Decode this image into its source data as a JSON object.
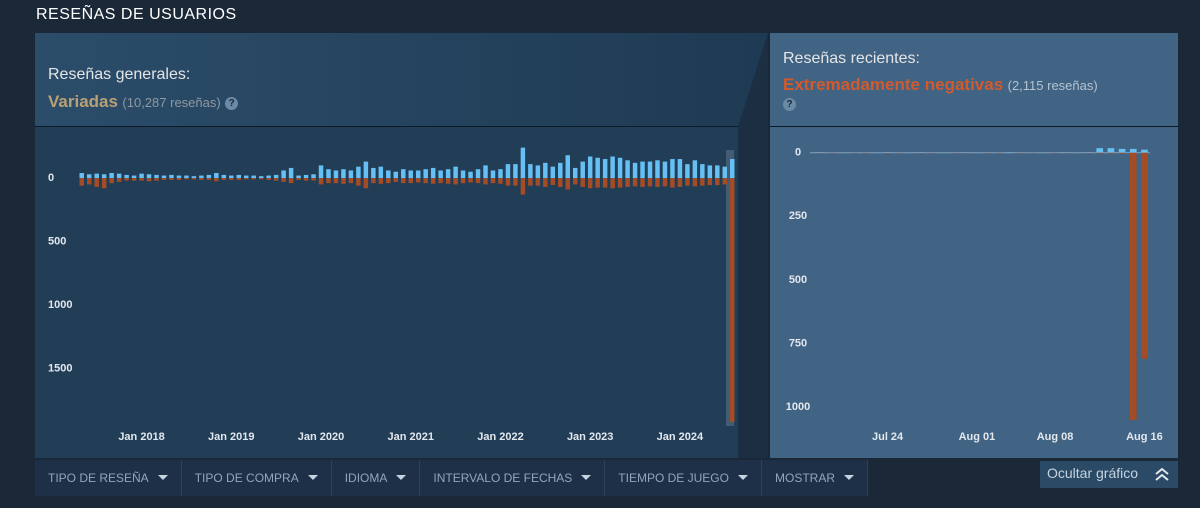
{
  "header": {
    "title": "RESEÑAS DE USUARIOS"
  },
  "overall": {
    "label": "Reseñas generales:",
    "rating": "Variadas",
    "count": "(10,287 reseñas)",
    "help": "?"
  },
  "recent": {
    "label": "Reseñas recientes:",
    "rating": "Extremadamente negativas",
    "count": "(2,115 reseñas)",
    "help": "?"
  },
  "filters": [
    "TIPO DE RESEÑA",
    "TIPO DE COMPRA",
    "IDIOMA",
    "INTERVALO DE FECHAS",
    "TIEMPO DE JUEGO",
    "MOSTRAR"
  ],
  "hide_button": "Ocultar gráfico",
  "chart_data": [
    {
      "type": "bar",
      "categories": [
        null,
        null,
        null,
        null,
        null,
        null,
        null,
        null,
        "Jan 2018",
        null,
        null,
        null,
        null,
        null,
        null,
        null,
        null,
        null,
        null,
        null,
        "Jan 2019",
        null,
        null,
        null,
        null,
        null,
        null,
        null,
        null,
        null,
        null,
        null,
        "Jan 2020",
        null,
        null,
        null,
        null,
        null,
        null,
        null,
        null,
        null,
        null,
        null,
        "Jan 2021",
        null,
        null,
        null,
        null,
        null,
        null,
        null,
        null,
        null,
        null,
        null,
        "Jan 2022",
        null,
        null,
        null,
        null,
        null,
        null,
        null,
        null,
        null,
        null,
        null,
        "Jan 2023",
        null,
        null,
        null,
        null,
        null,
        null,
        null,
        null,
        null,
        null,
        null,
        "Jan 2024",
        null,
        null,
        null,
        null,
        null,
        null,
        null
      ],
      "series": [
        {
          "color": "#66c0f4",
          "values": [
            40,
            30,
            35,
            30,
            40,
            35,
            25,
            20,
            35,
            30,
            25,
            20,
            25,
            20,
            20,
            15,
            20,
            25,
            40,
            25,
            20,
            25,
            20,
            20,
            15,
            20,
            25,
            60,
            80,
            20,
            25,
            30,
            100,
            70,
            60,
            70,
            60,
            90,
            130,
            80,
            90,
            60,
            50,
            70,
            60,
            60,
            70,
            80,
            60,
            70,
            90,
            60,
            50,
            70,
            100,
            60,
            70,
            110,
            110,
            240,
            110,
            100,
            120,
            90,
            120,
            180,
            80,
            130,
            170,
            160,
            150,
            170,
            160,
            140,
            120,
            130,
            130,
            140,
            130,
            150,
            150,
            110,
            140,
            110,
            100,
            100,
            90,
            150
          ]
        },
        {
          "color": "#a34c25",
          "values": [
            -60,
            -50,
            -70,
            -80,
            -40,
            -30,
            -20,
            -20,
            -20,
            -25,
            -20,
            -15,
            -15,
            -15,
            -10,
            -10,
            -15,
            -15,
            -25,
            -15,
            -15,
            -15,
            -10,
            -10,
            -10,
            -15,
            -20,
            -30,
            -40,
            -15,
            -20,
            -20,
            -50,
            -40,
            -40,
            -45,
            -40,
            -60,
            -80,
            -40,
            -45,
            -40,
            -30,
            -40,
            -40,
            -35,
            -40,
            -45,
            -40,
            -45,
            -50,
            -40,
            -35,
            -40,
            -50,
            -40,
            -45,
            -60,
            -60,
            -130,
            -60,
            -60,
            -70,
            -55,
            -70,
            -90,
            -50,
            -70,
            -80,
            -75,
            -75,
            -80,
            -75,
            -70,
            -65,
            -70,
            -65,
            -70,
            -65,
            -75,
            -70,
            -60,
            -65,
            -60,
            -55,
            -55,
            -50,
            -1920
          ]
        }
      ],
      "ylim": [
        -1945,
        300
      ],
      "yticks": [
        0,
        {
          "value": -500,
          "label": "500"
        },
        {
          "value": -1000,
          "label": "1000"
        },
        {
          "value": -1500,
          "label": "1500"
        }
      ]
    },
    {
      "type": "bar",
      "categories": [
        null,
        null,
        null,
        null,
        null,
        null,
        "Jul 24",
        null,
        null,
        null,
        null,
        null,
        null,
        null,
        "Aug 01",
        null,
        null,
        null,
        null,
        null,
        null,
        "Aug 08",
        null,
        null,
        null,
        null,
        null,
        null,
        null,
        "Aug 16"
      ],
      "series": [
        {
          "color": "#66c0f4",
          "values": [
            3,
            2,
            2,
            2,
            2,
            2,
            3,
            2,
            2,
            3,
            2,
            2,
            2,
            3,
            2,
            2,
            2,
            3,
            2,
            2,
            2,
            2,
            3,
            2,
            3,
            18,
            18,
            15,
            15,
            12
          ]
        },
        {
          "color": "#a34c25",
          "values": [
            -2,
            -2,
            -1,
            -2,
            -2,
            -1,
            -2,
            -2,
            -1,
            -2,
            -2,
            -1,
            -2,
            -2,
            -1,
            -2,
            -2,
            -1,
            -2,
            -2,
            -1,
            -2,
            -2,
            -1,
            -2,
            -3,
            -3,
            -4,
            -1050,
            -810
          ]
        }
      ],
      "ylim": [
        -1070,
        50
      ],
      "yticks": [
        0,
        {
          "value": -250,
          "label": "250"
        },
        {
          "value": -500,
          "label": "500"
        },
        {
          "value": -750,
          "label": "750"
        },
        {
          "value": -1000,
          "label": "1000"
        }
      ],
      "zero_line": true
    }
  ]
}
